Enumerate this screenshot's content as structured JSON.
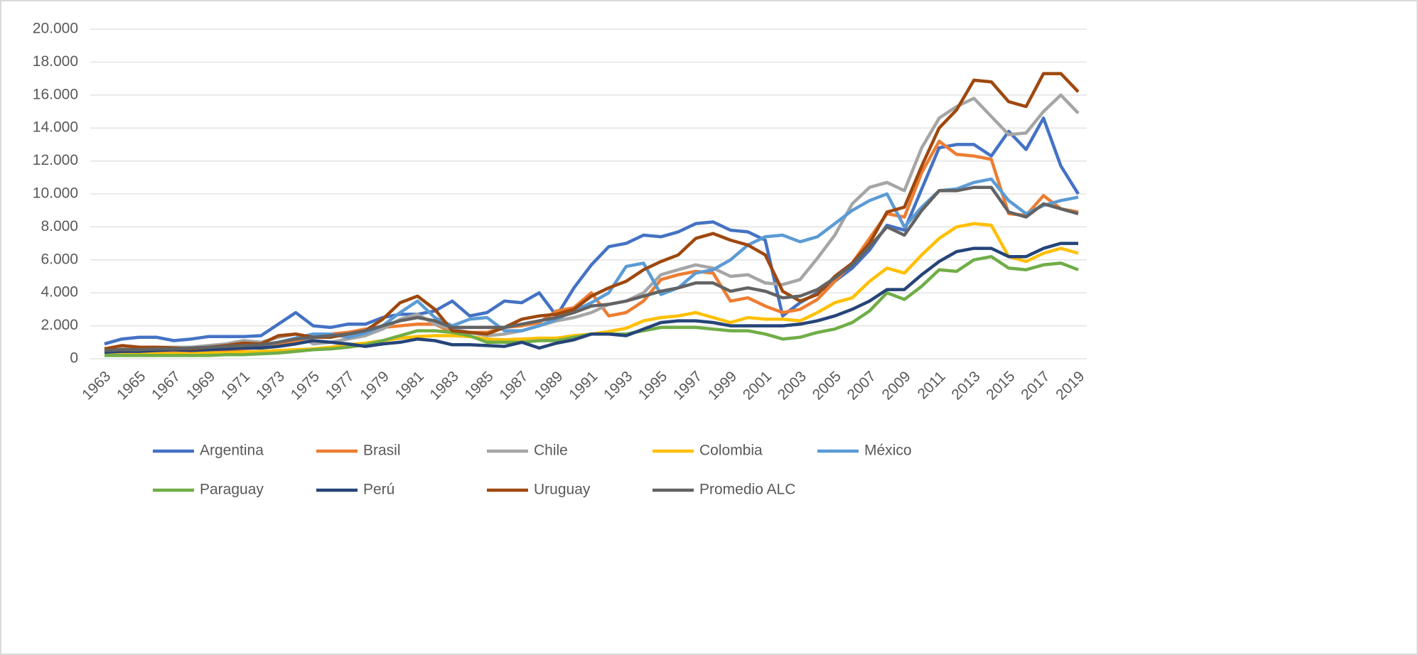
{
  "chart_data": {
    "type": "line",
    "categories": [
      "1963",
      null,
      "1965",
      null,
      "1967",
      null,
      "1969",
      null,
      "1971",
      null,
      "1973",
      null,
      "1975",
      null,
      "1977",
      null,
      "1979",
      null,
      "1981",
      null,
      "1983",
      null,
      "1985",
      null,
      "1987",
      null,
      "1989",
      null,
      "1991",
      null,
      "1993",
      null,
      "1995",
      null,
      "1997",
      null,
      "1999",
      null,
      "2001",
      null,
      "2003",
      null,
      "2005",
      null,
      "2007",
      null,
      "2009",
      null,
      "2011",
      null,
      "2013",
      null,
      "2015",
      null,
      "2017",
      null,
      "2019"
    ],
    "ylim": [
      0,
      20000
    ],
    "yticks": [
      0,
      {
        "value": 2000,
        "label": "2.000"
      },
      {
        "value": 4000,
        "label": "4.000"
      },
      {
        "value": 6000,
        "label": "6.000"
      },
      {
        "value": 8000,
        "label": "8.000"
      },
      {
        "value": 10000,
        "label": "10.000"
      },
      {
        "value": 12000,
        "label": "12.000"
      },
      {
        "value": 14000,
        "label": "14.000"
      },
      {
        "value": 16000,
        "label": "16.000"
      },
      {
        "value": 18000,
        "label": "18.000"
      },
      {
        "value": 20000,
        "label": "20.000"
      }
    ],
    "grid": true,
    "legend": "bottom",
    "series": [
      {
        "name": "Argentina",
        "color": "#4472c4",
        "values": [
          900,
          1200,
          1300,
          1300,
          1100,
          1200,
          1350,
          1350,
          1350,
          1400,
          2100,
          2800,
          2000,
          1900,
          2100,
          2100,
          2500,
          2700,
          2700,
          2900,
          3500,
          2600,
          2800,
          3500,
          3400,
          4000,
          2600,
          4300,
          5700,
          6800,
          7000,
          7500,
          7400,
          7700,
          8200,
          8300,
          7800,
          7700,
          7200,
          2600,
          3400,
          4000,
          4700,
          5500,
          6600,
          8100,
          7800,
          10300,
          12800,
          13000,
          13000,
          12300,
          13800,
          12700,
          14600,
          11700,
          10000
        ]
      },
      {
        "name": "Brasil",
        "color": "#ed7d31",
        "values": [
          300,
          300,
          300,
          350,
          400,
          450,
          500,
          500,
          600,
          700,
          900,
          1100,
          1300,
          1500,
          1600,
          1800,
          1900,
          2000,
          2100,
          2100,
          1600,
          1600,
          1600,
          1900,
          2000,
          2200,
          2900,
          3100,
          4000,
          2600,
          2800,
          3500,
          4800,
          5100,
          5300,
          5200,
          3500,
          3700,
          3200,
          2800,
          3000,
          3600,
          4700,
          5800,
          7300,
          8800,
          8600,
          11300,
          13200,
          12400,
          12300,
          12100,
          8800,
          8700,
          9900,
          9100,
          8900
        ]
      },
      {
        "name": "Chile",
        "color": "#a5a5a5",
        "values": [
          600,
          650,
          650,
          700,
          700,
          700,
          800,
          900,
          1100,
          1000,
          1300,
          1500,
          900,
          1000,
          1200,
          1400,
          1800,
          2400,
          2700,
          2100,
          1800,
          1600,
          1400,
          1500,
          1700,
          2000,
          2300,
          2500,
          2800,
          3300,
          3500,
          4000,
          5100,
          5400,
          5700,
          5500,
          5000,
          5100,
          4600,
          4500,
          4800,
          6100,
          7500,
          9400,
          10400,
          10700,
          10200,
          12800,
          14600,
          15300,
          15800,
          14700,
          13600,
          13700,
          15000,
          16000,
          14900
        ]
      },
      {
        "name": "Colombia",
        "color": "#ffc000",
        "values": [
          300,
          350,
          300,
          300,
          300,
          300,
          350,
          350,
          400,
          450,
          500,
          550,
          600,
          700,
          850,
          950,
          1100,
          1250,
          1350,
          1400,
          1400,
          1350,
          1200,
          1150,
          1200,
          1250,
          1250,
          1400,
          1500,
          1650,
          1850,
          2300,
          2500,
          2600,
          2800,
          2500,
          2200,
          2500,
          2400,
          2400,
          2300,
          2800,
          3400,
          3700,
          4700,
          5500,
          5200,
          6300,
          7300,
          8000,
          8200,
          8100,
          6200,
          5900,
          6400,
          6700,
          6400
        ]
      },
      {
        "name": "México",
        "color": "#5b9bd5",
        "values": [
          400,
          450,
          500,
          550,
          600,
          650,
          700,
          700,
          750,
          800,
          1000,
          1250,
          1500,
          1500,
          1300,
          1550,
          2000,
          2800,
          3500,
          2500,
          2000,
          2400,
          2500,
          1700,
          1700,
          2000,
          2400,
          2900,
          3400,
          4000,
          5600,
          5800,
          3900,
          4300,
          5200,
          5400,
          6000,
          6900,
          7400,
          7500,
          7100,
          7400,
          8200,
          9000,
          9600,
          10000,
          8000,
          9200,
          10200,
          10300,
          10700,
          10900,
          9600,
          8800,
          9300,
          9600,
          9800
        ]
      },
      {
        "name": "Paraguay",
        "color": "#70ad47",
        "values": [
          200,
          200,
          200,
          200,
          200,
          200,
          200,
          250,
          250,
          300,
          350,
          450,
          550,
          600,
          700,
          850,
          1100,
          1400,
          1700,
          1700,
          1600,
          1400,
          1000,
          1000,
          1000,
          1100,
          1100,
          1300,
          1500,
          1500,
          1500,
          1700,
          1900,
          1900,
          1900,
          1800,
          1700,
          1700,
          1500,
          1200,
          1300,
          1600,
          1800,
          2200,
          2900,
          4000,
          3600,
          4400,
          5400,
          5300,
          6000,
          6200,
          5500,
          5400,
          5700,
          5800,
          5400
        ]
      },
      {
        "name": "Perú",
        "color": "#264478",
        "values": [
          400,
          450,
          450,
          500,
          550,
          500,
          550,
          600,
          650,
          650,
          750,
          900,
          1100,
          1000,
          900,
          750,
          900,
          1000,
          1200,
          1100,
          850,
          850,
          800,
          750,
          1000,
          650,
          950,
          1150,
          1500,
          1500,
          1400,
          1800,
          2200,
          2300,
          2300,
          2200,
          2000,
          2000,
          2000,
          2000,
          2100,
          2300,
          2600,
          3000,
          3500,
          4200,
          4200,
          5100,
          5900,
          6500,
          6700,
          6700,
          6200,
          6200,
          6700,
          7000,
          7000
        ]
      },
      {
        "name": "Uruguay",
        "color": "#9e480e",
        "values": [
          600,
          800,
          700,
          700,
          650,
          600,
          700,
          800,
          950,
          900,
          1400,
          1500,
          1300,
          1300,
          1500,
          1700,
          2400,
          3400,
          3800,
          3000,
          1700,
          1600,
          1500,
          1900,
          2400,
          2600,
          2700,
          3000,
          3800,
          4300,
          4700,
          5400,
          5900,
          6300,
          7300,
          7600,
          7200,
          6900,
          6300,
          4100,
          3500,
          3900,
          5000,
          5800,
          7000,
          8900,
          9200,
          11700,
          14000,
          15100,
          16900,
          16800,
          15600,
          15300,
          17300,
          17300,
          16200
        ]
      },
      {
        "name": "Promedio ALC",
        "color": "#636363",
        "values": [
          500,
          550,
          550,
          600,
          600,
          650,
          700,
          750,
          800,
          850,
          1000,
          1200,
          1300,
          1400,
          1500,
          1700,
          2000,
          2300,
          2500,
          2300,
          1900,
          1900,
          1900,
          1900,
          2100,
          2300,
          2500,
          2800,
          3200,
          3300,
          3500,
          3800,
          4100,
          4300,
          4600,
          4600,
          4100,
          4300,
          4100,
          3700,
          3800,
          4200,
          4900,
          5700,
          6800,
          8000,
          7500,
          9000,
          10200,
          10200,
          10400,
          10400,
          8900,
          8600,
          9400,
          9100,
          8800
        ]
      }
    ]
  }
}
